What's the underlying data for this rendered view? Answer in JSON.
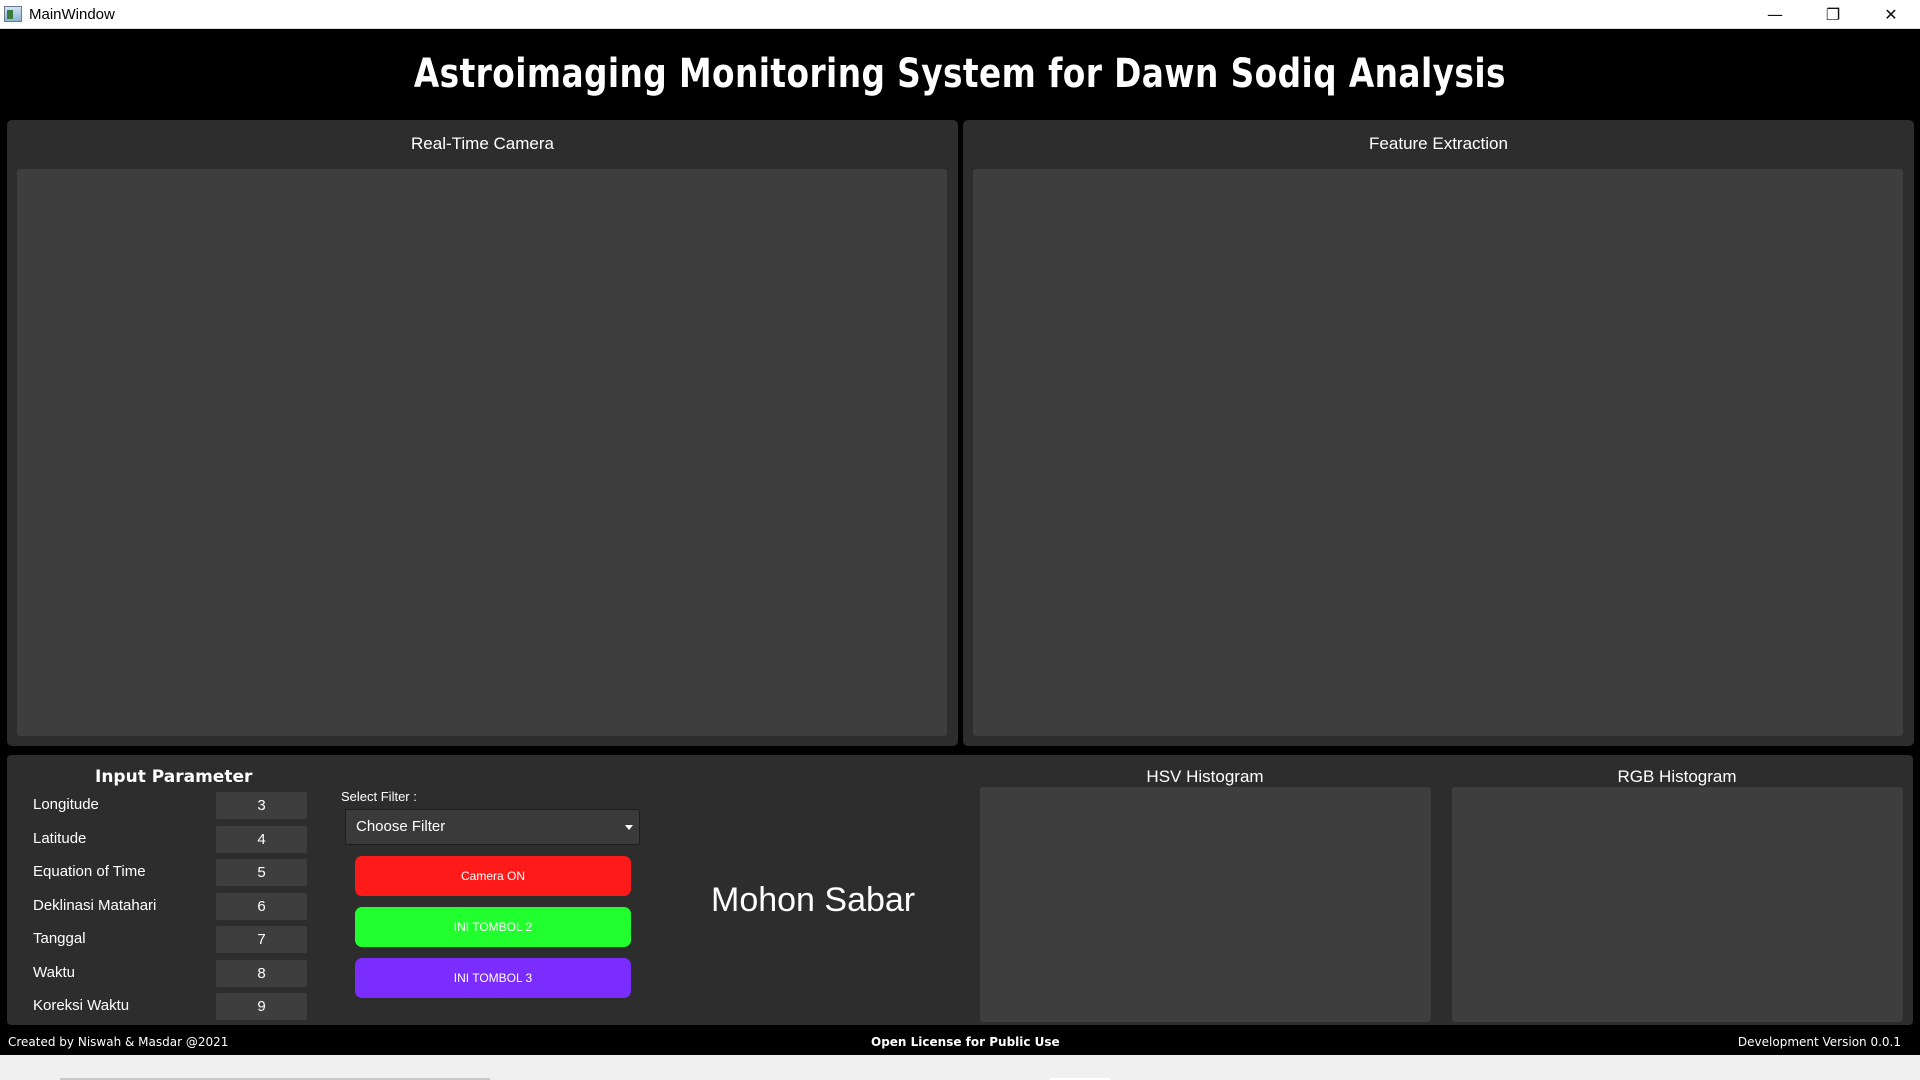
{
  "window": {
    "title": "MainWindow",
    "controls": {
      "minimize": "—",
      "restore": "❐",
      "close": "✕"
    }
  },
  "header": {
    "title": "Astroimaging Monitoring System for Dawn Sodiq Analysis"
  },
  "panels": {
    "realtime_camera": {
      "title": "Real-Time Camera"
    },
    "feature_extraction": {
      "title": "Feature Extraction"
    }
  },
  "input_parameter": {
    "title": "Input Parameter",
    "rows": [
      {
        "label": "Longitude",
        "value": "3"
      },
      {
        "label": "Latitude",
        "value": "4"
      },
      {
        "label": "Equation of Time",
        "value": "5"
      },
      {
        "label": "Deklinasi Matahari",
        "value": "6"
      },
      {
        "label": "Tanggal",
        "value": "7"
      },
      {
        "label": "Waktu",
        "value": "8"
      },
      {
        "label": "Koreksi Waktu",
        "value": "9"
      }
    ]
  },
  "filter": {
    "label": "Select Filter :",
    "selected": "Choose Filter"
  },
  "buttons": {
    "camera_on": {
      "label": "Camera ON",
      "bg": "#ff1a1a",
      "fg": "#ffffff"
    },
    "tombol2": {
      "label": "INI TOMBOL 2",
      "bg": "#22ff2e",
      "fg": "#ffffff"
    },
    "tombol3": {
      "label": "INI TOMBOL 3",
      "bg": "#7b2cff",
      "fg": "#ffffff"
    }
  },
  "status": {
    "message": "Mohon Sabar"
  },
  "histograms": {
    "hsv": {
      "title": "HSV Histogram"
    },
    "rgb": {
      "title": "RGB Histogram"
    }
  },
  "footer": {
    "credit": "Created by Niswah & Masdar @2021",
    "license": "Open License for Public Use",
    "version": "Development Version 0.0.1"
  }
}
